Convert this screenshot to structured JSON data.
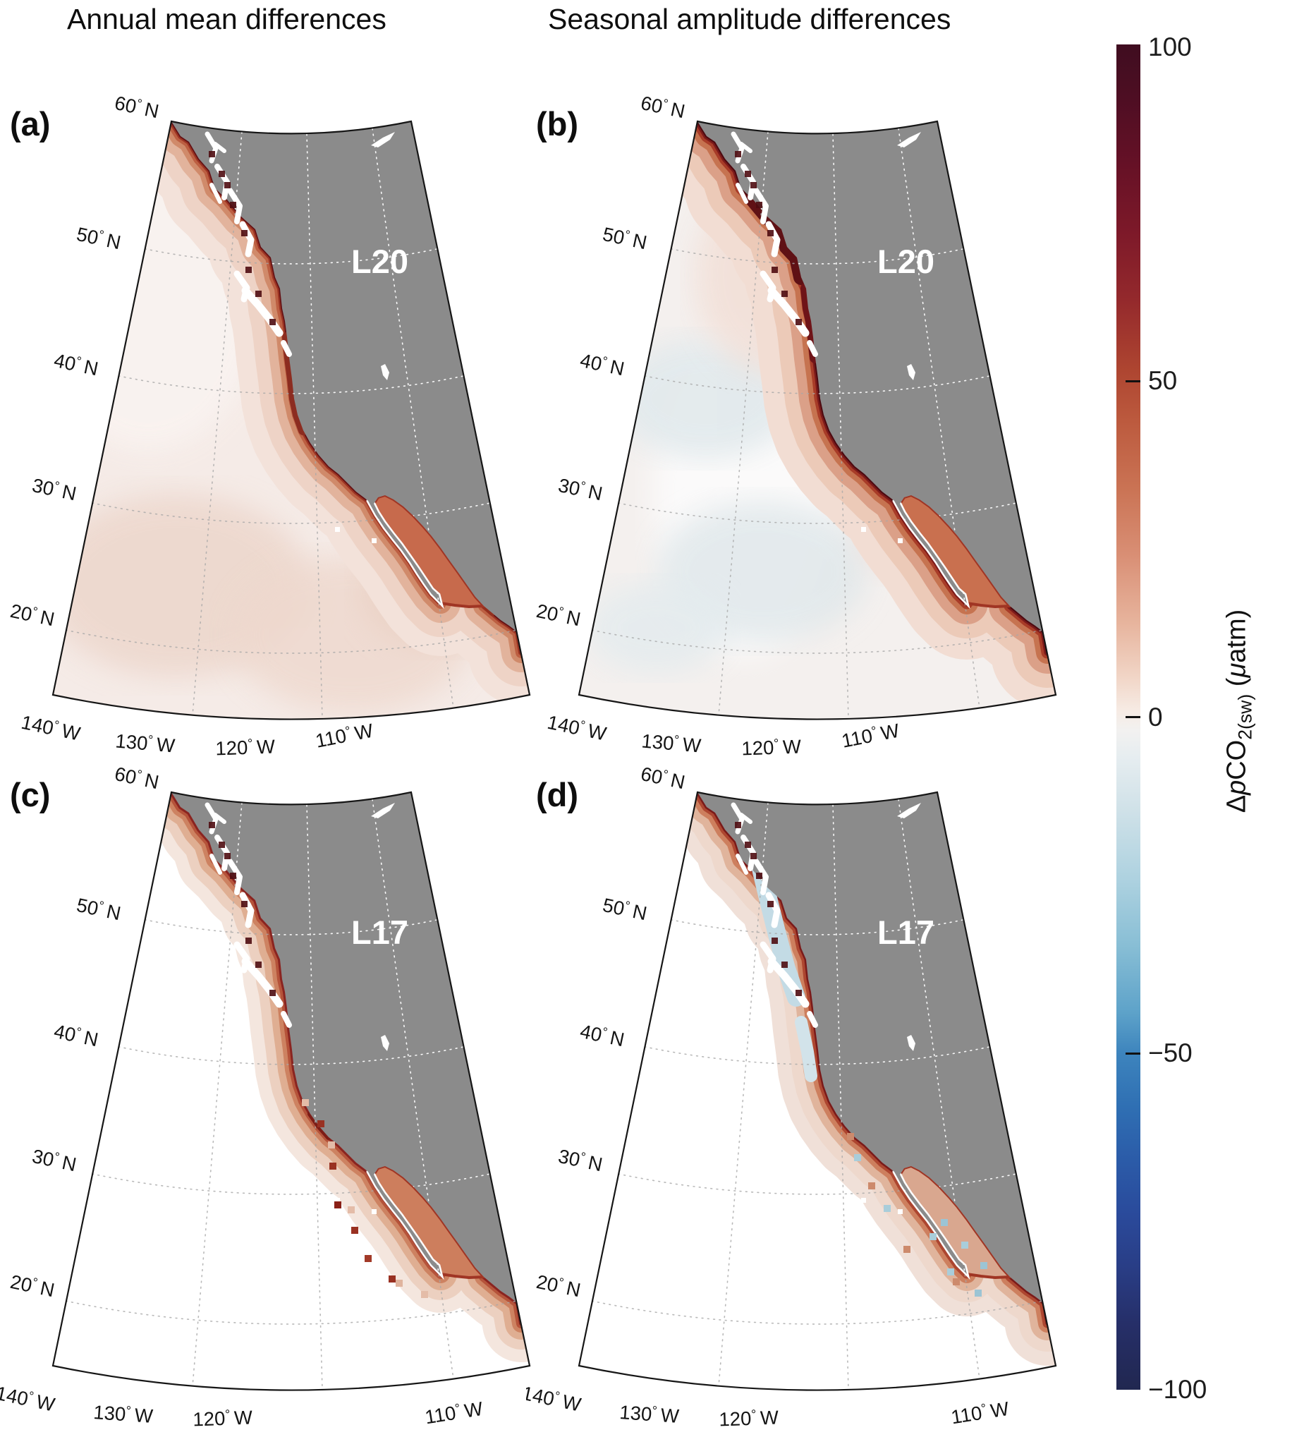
{
  "figure_type": "four_panel_coastal_difference_maps",
  "titles": {
    "left": "Annual mean differences",
    "right": "Seasonal amplitude differences"
  },
  "panels": [
    {
      "letter": "(a)",
      "model": "L20",
      "row": 0,
      "col": 0,
      "style": "a",
      "column_title": "Annual mean differences"
    },
    {
      "letter": "(b)",
      "model": "L20",
      "row": 0,
      "col": 1,
      "style": "b",
      "column_title": "Seasonal amplitude differences"
    },
    {
      "letter": "(c)",
      "model": "L17",
      "row": 1,
      "col": 0,
      "style": "c",
      "column_title": "Annual mean differences"
    },
    {
      "letter": "(d)",
      "model": "L17",
      "row": 1,
      "col": 1,
      "style": "d",
      "column_title": "Seasonal amplitude differences"
    }
  ],
  "axis_ticks": {
    "lat": [
      {
        "v": "60",
        "h": "N"
      },
      {
        "v": "50",
        "h": "N"
      },
      {
        "v": "40",
        "h": "N"
      },
      {
        "v": "30",
        "h": "N"
      },
      {
        "v": "20",
        "h": "N"
      }
    ],
    "lon": [
      {
        "v": "140",
        "h": "W"
      },
      {
        "v": "130",
        "h": "W"
      },
      {
        "v": "120",
        "h": "W"
      },
      {
        "v": "110",
        "h": "W"
      }
    ]
  },
  "colorbar": {
    "tick_labels": [
      "100",
      "50",
      "0",
      "−50",
      "−100"
    ],
    "range": {
      "min": -100,
      "max": 100
    },
    "label": {
      "delta": "Δ",
      "p": "p",
      "co": "CO",
      "sub": "2(sw)",
      "units_open": " (",
      "mu": "μ",
      "units_close": "atm)"
    },
    "gradient": [
      [
        0,
        "#3f0d20"
      ],
      [
        4,
        "#4e0e23"
      ],
      [
        9,
        "#661126"
      ],
      [
        14,
        "#7d1929"
      ],
      [
        19,
        "#94292c"
      ],
      [
        24,
        "#ad4430"
      ],
      [
        28,
        "#bc5a3e"
      ],
      [
        33,
        "#ca7354"
      ],
      [
        38,
        "#d98f75"
      ],
      [
        43,
        "#e7b49d"
      ],
      [
        47,
        "#f1d5c6"
      ],
      [
        49.5,
        "#f6ebe4"
      ],
      [
        51,
        "#f2f1f0"
      ],
      [
        53,
        "#e6edf0"
      ],
      [
        57,
        "#cfe1e8"
      ],
      [
        62,
        "#aed2e0"
      ],
      [
        67,
        "#88bed5"
      ],
      [
        72,
        "#5da2c9"
      ],
      [
        75,
        "#3d84bd"
      ],
      [
        79,
        "#2f6fb3"
      ],
      [
        83,
        "#2b5ba8"
      ],
      [
        87,
        "#2a4a9b"
      ],
      [
        91,
        "#293d85"
      ],
      [
        95,
        "#262f69"
      ],
      [
        100,
        "#212750"
      ]
    ]
  },
  "colors": {
    "land": "#8b8b8b",
    "no_data_ocean": "#ffffff",
    "coast_extreme": "#4c0a10",
    "map_border": "#161616"
  }
}
